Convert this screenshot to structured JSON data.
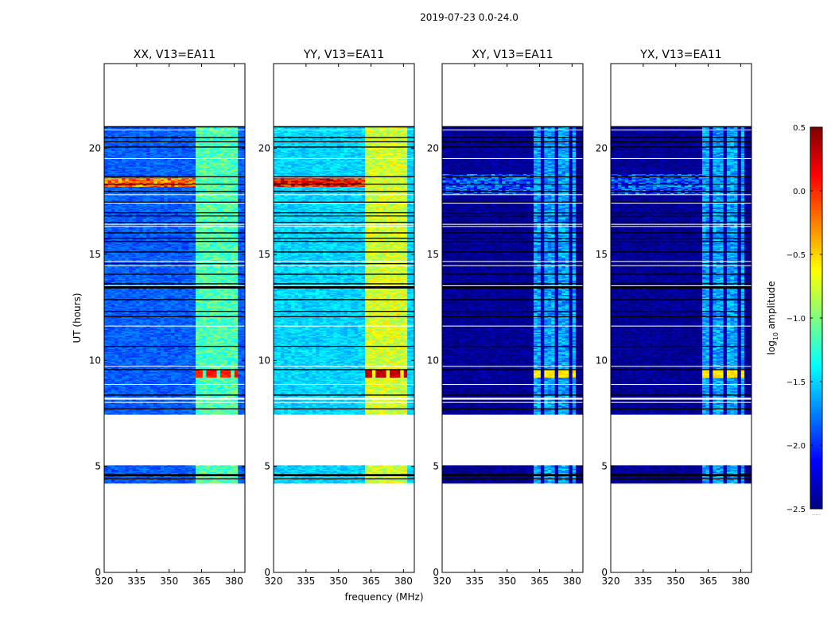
{
  "figure_title": "2019-07-23 0.0-24.0",
  "chart_data": {
    "type": "heatmap",
    "title": "2019-07-23 0.0-24.0",
    "xlabel": "frequency (MHz)",
    "ylabel": "UT (hours)",
    "xlim": [
      320,
      385
    ],
    "ylim": [
      0,
      24
    ],
    "x_ticks": [
      320,
      335,
      350,
      365,
      380
    ],
    "y_ticks": [
      0,
      5,
      10,
      15,
      20
    ],
    "colormap": "jet",
    "colorbar": {
      "label_main": "log",
      "label_sub": "10",
      "label_rest": " amplitude",
      "range": [
        -2.5,
        0.5
      ],
      "ticks": [
        "0.5",
        "0.0",
        "−0.5",
        "−1.0",
        "−1.5",
        "−2.0",
        "−2.5"
      ],
      "tick_values": [
        0.5,
        0.0,
        -0.5,
        -1.0,
        -1.5,
        -2.0,
        -2.5
      ],
      "extra_tick_label": "....."
    },
    "data_segments_ut": [
      [
        4.2,
        5.05
      ],
      [
        7.45,
        21.05
      ]
    ],
    "hot_band": {
      "ut": [
        9.2,
        9.55
      ],
      "freq": [
        362,
        382
      ]
    },
    "panels": [
      {
        "title": "XX, V13=EA11",
        "kind": "parallel",
        "base_low_freq": -1.85,
        "base_high_freq": -1.15,
        "hot_value": 0.05,
        "rfi_ut": [
          18.2,
          18.6
        ],
        "rfi_value": -0.2
      },
      {
        "title": "YY, V13=EA11",
        "kind": "parallel",
        "base_low_freq": -1.5,
        "base_high_freq": -0.75,
        "hot_value": 0.3,
        "rfi_ut": [
          18.2,
          18.6
        ],
        "rfi_value": 0.1
      },
      {
        "title": "XY, V13=EA11",
        "kind": "cross",
        "base_low_freq": -2.45,
        "base_high_freq": -1.65,
        "hot_value": -0.55,
        "rfi_ut": [
          17.8,
          18.8
        ],
        "rfi_value": -1.9
      },
      {
        "title": "YX, V13=EA11",
        "kind": "cross",
        "base_low_freq": -2.45,
        "base_high_freq": -1.65,
        "hot_value": -0.55,
        "rfi_ut": [
          17.8,
          18.8
        ],
        "rfi_value": -1.9
      }
    ]
  }
}
